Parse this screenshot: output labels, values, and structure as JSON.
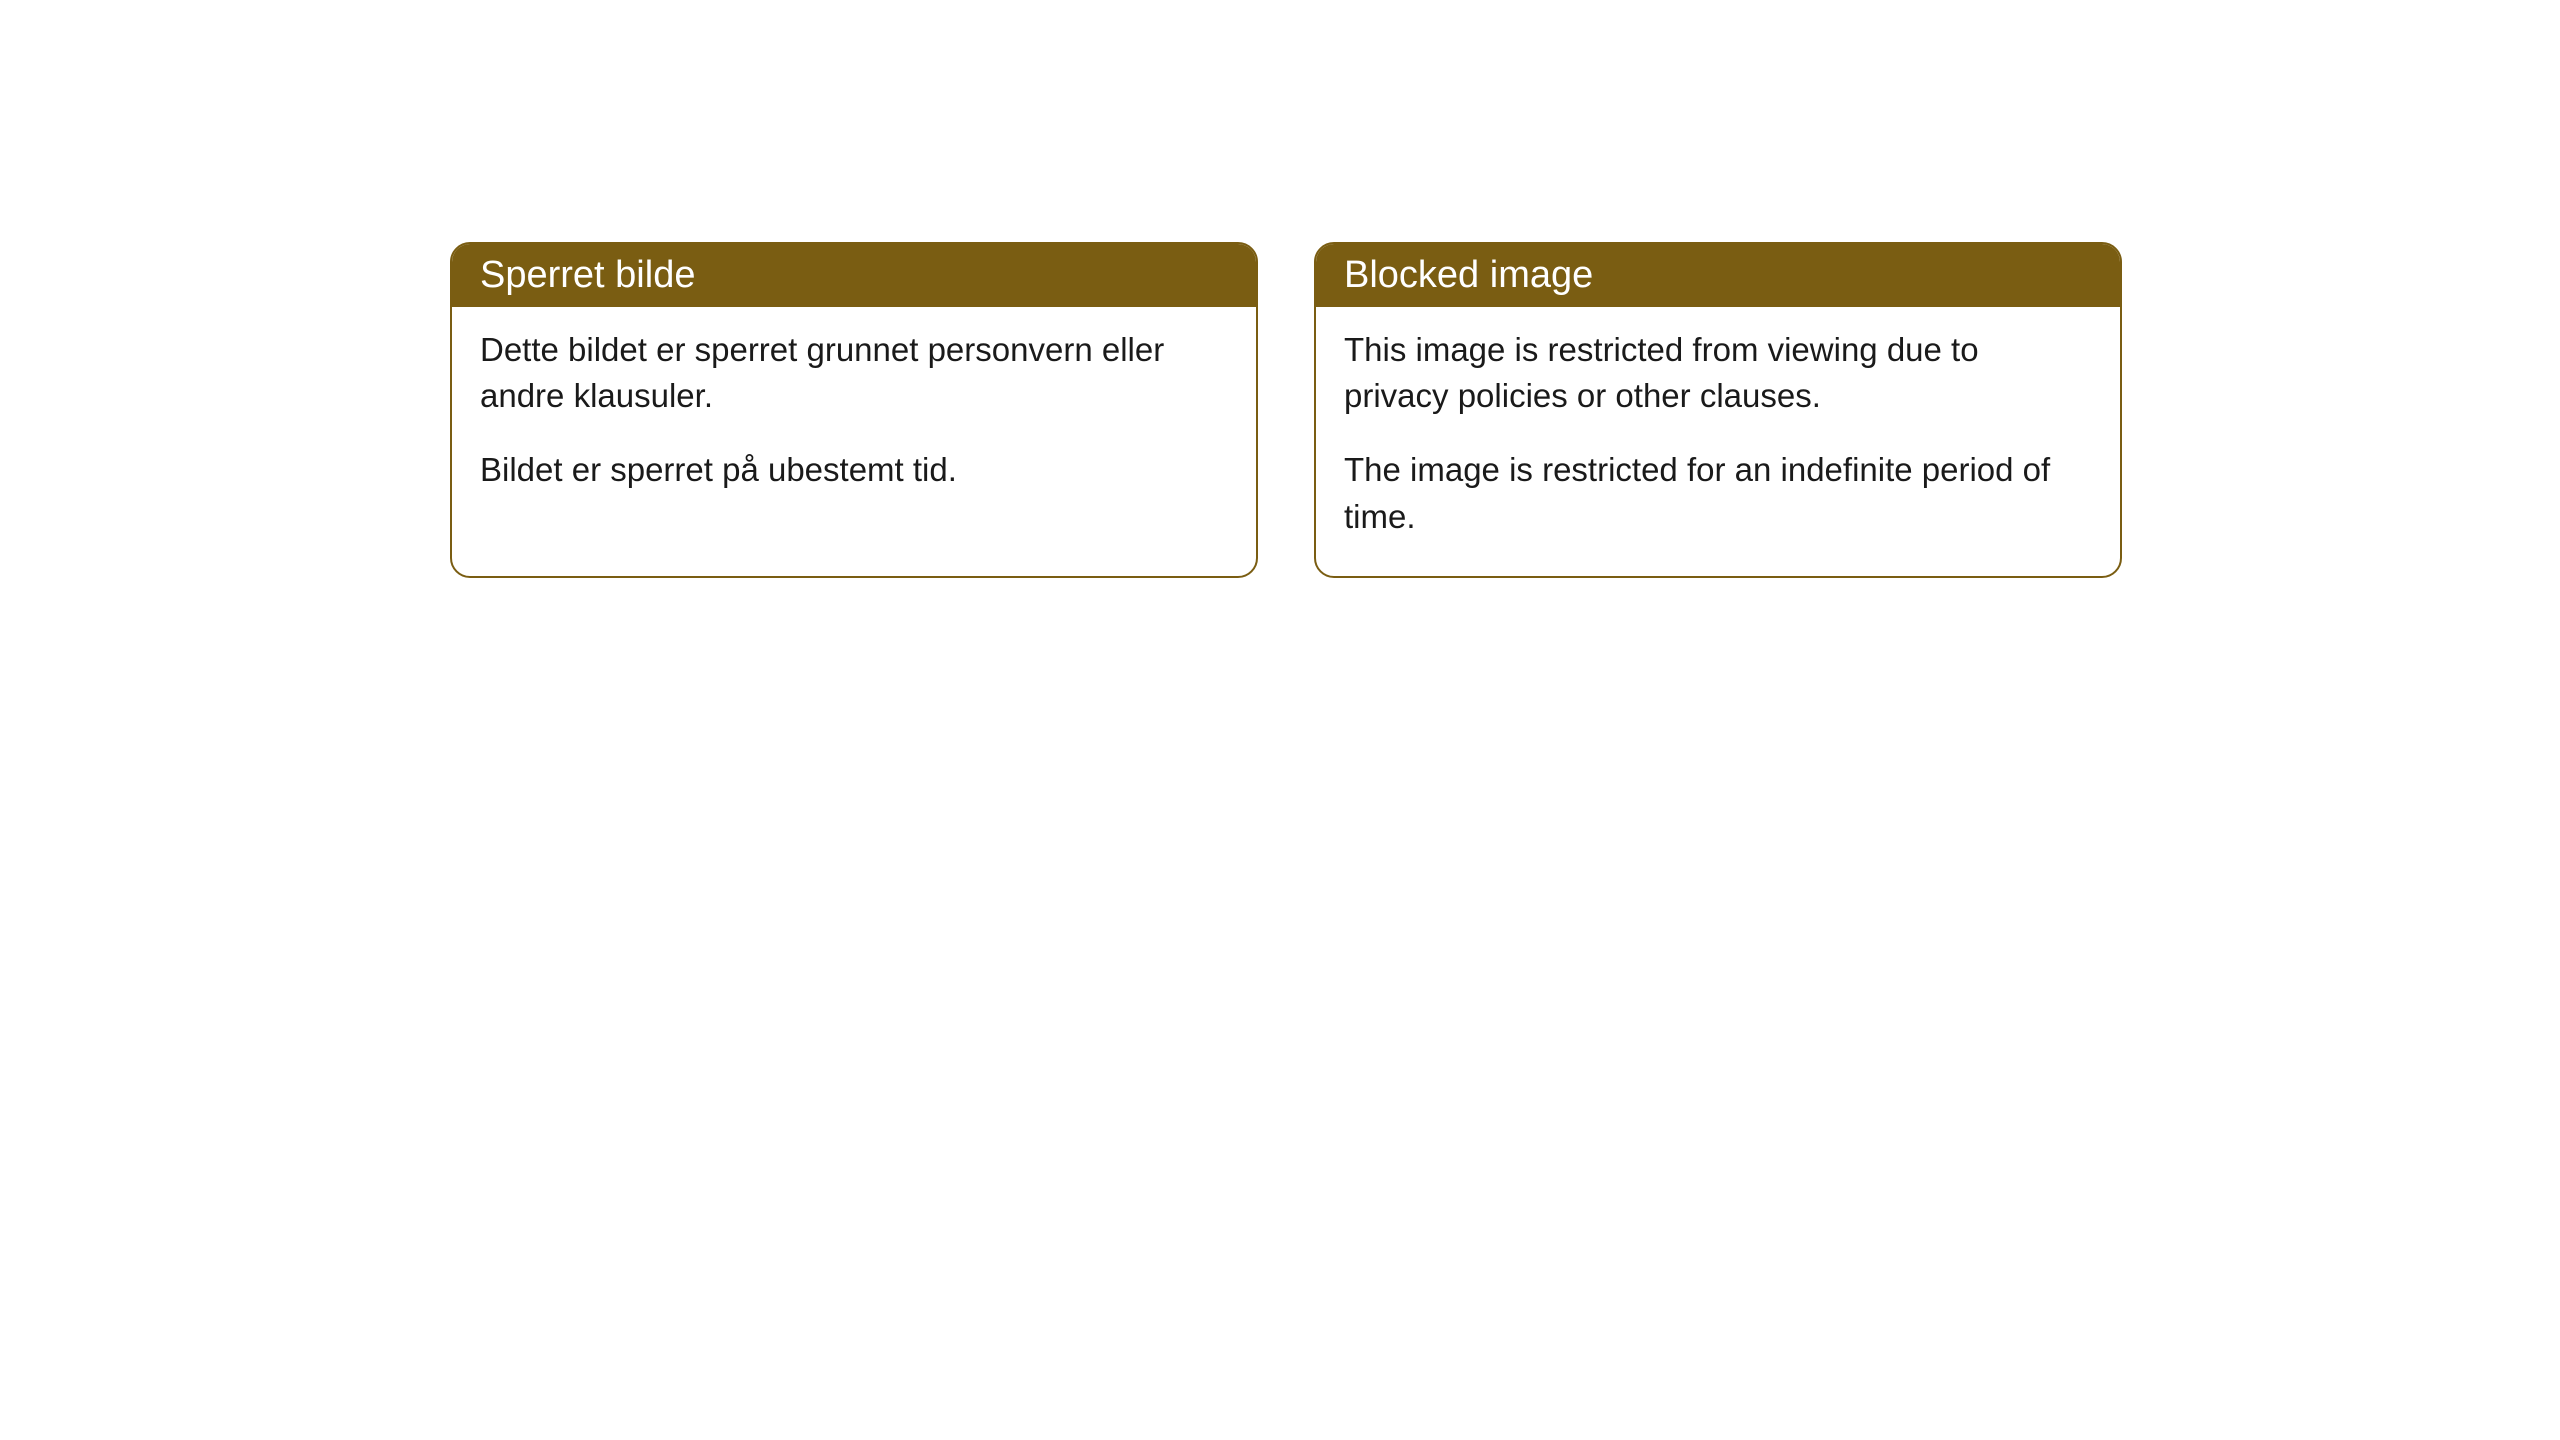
{
  "cards": [
    {
      "title": "Sperret bilde",
      "paragraph1": "Dette bildet er sperret grunnet personvern eller andre klausuler.",
      "paragraph2": "Bildet er sperret på ubestemt tid."
    },
    {
      "title": "Blocked image",
      "paragraph1": "This image is restricted from viewing due to privacy policies or other clauses.",
      "paragraph2": "The image is restricted for an indefinite period of time."
    }
  ],
  "styling": {
    "header_background": "#7a5d12",
    "header_text_color": "#ffffff",
    "border_color": "#7a5d12",
    "body_background": "#ffffff",
    "body_text_color": "#1a1a1a",
    "border_radius": 20,
    "title_fontsize": 38,
    "body_fontsize": 33
  }
}
